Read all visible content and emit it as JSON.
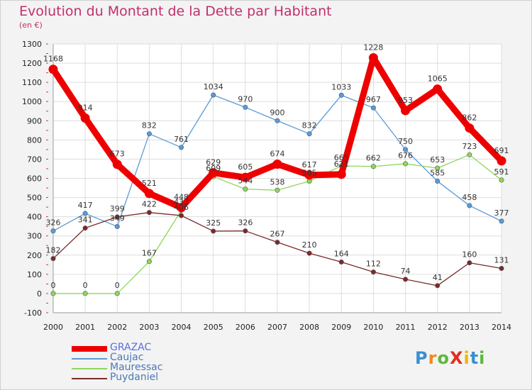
{
  "chart_data": {
    "type": "line",
    "title": "Evolution du Montant de la Dette par Habitant",
    "subtitle": "(en €)",
    "x": [
      "2000",
      "2001",
      "2002",
      "2003",
      "2004",
      "2005",
      "2006",
      "2007",
      "2008",
      "2009",
      "2010",
      "2011",
      "2012",
      "2013",
      "2014"
    ],
    "ylim": [
      -100,
      1300
    ],
    "yticks": [
      "-100",
      "0",
      "100",
      "200",
      "300",
      "400",
      "500",
      "600",
      "700",
      "800",
      "900",
      "1000",
      "1100",
      "1200",
      "1300"
    ],
    "grid": true,
    "legend_position": "bottom-left",
    "series": [
      {
        "name": "GRAZAC",
        "color": "#ee0000",
        "values": [
          1168,
          914,
          673,
          521,
          448,
          629,
          605,
          674,
          617,
          621,
          1228,
          953,
          1065,
          862,
          691
        ]
      },
      {
        "name": "Caujac",
        "color": "#5b9bd5",
        "values": [
          326,
          417,
          349,
          832,
          761,
          1034,
          970,
          900,
          832,
          1033,
          967,
          750,
          585,
          458,
          377
        ]
      },
      {
        "name": "Mauressac",
        "color": "#8fd65c",
        "values": [
          0,
          0,
          0,
          167,
          433,
          609,
          544,
          538,
          585,
          665,
          662,
          676,
          653,
          723,
          591
        ]
      },
      {
        "name": "Puydaniel",
        "color": "#7a2a2a",
        "values": [
          182,
          341,
          399,
          422,
          406,
          325,
          326,
          267,
          210,
          164,
          112,
          74,
          41,
          160,
          131
        ]
      }
    ]
  },
  "logo": {
    "text": "ProXiti",
    "letters": [
      "P",
      "r",
      "o",
      "X",
      "i",
      "t",
      "i"
    ],
    "colors": [
      "#3a8fd0",
      "#f08a1c",
      "#5cb83c",
      "#e0301e",
      "#f0b400",
      "#3a8fd0",
      "#5cb83c"
    ]
  }
}
